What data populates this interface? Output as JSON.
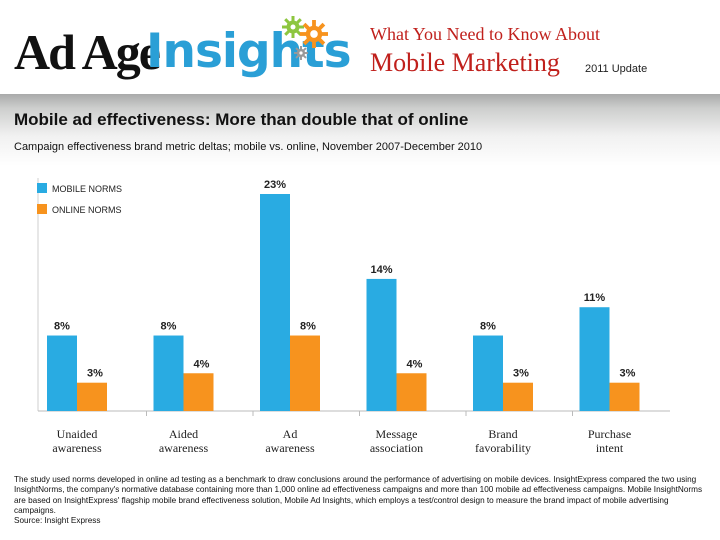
{
  "header": {
    "logo_left": "Ad Age",
    "logo_right": "Insights",
    "top_line": "What You Need to Know About",
    "main_line": "Mobile Marketing",
    "update": "2011 Update"
  },
  "colors": {
    "mobile": "#29abe2",
    "online": "#f7931e",
    "title_red": "#c0201c",
    "brand_blue": "#2a9fd6"
  },
  "chart_data": {
    "type": "bar",
    "title": "Mobile ad effectiveness: More than double that of online",
    "subtitle": "Campaign effectiveness brand metric deltas; mobile vs. online, November 2007-December 2010",
    "categories": [
      "Unaided awareness",
      "Aided awareness",
      "Ad awareness",
      "Message association",
      "Brand favorability",
      "Purchase intent"
    ],
    "series": [
      {
        "name": "MOBILE NORMS",
        "values": [
          8,
          8,
          23,
          14,
          8,
          11
        ],
        "labels": [
          "8%",
          "8%",
          "23%",
          "14%",
          "8%",
          "11%"
        ]
      },
      {
        "name": "ONLINE NORMS",
        "values": [
          3,
          4,
          8,
          4,
          3,
          3
        ],
        "labels": [
          "3%",
          "4%",
          "8%",
          "4%",
          "3%",
          "3%"
        ]
      }
    ],
    "ylim": [
      0,
      23
    ],
    "xlabel": "",
    "ylabel": "",
    "legend": "top-left",
    "grid": false
  },
  "footnote": {
    "text": "The study used norms developed in online ad testing as a benchmark to draw conclusions around the performance of advertising on mobile devices. InsightExpress compared the two using InsightNorms, the company's normative database containing more than 1,000 online ad effectiveness campaigns and more than 100 mobile ad effectiveness campaigns. Mobile InsightNorms are based on InsightExpress' flagship mobile brand effectiveness solution, Mobile Ad Insights, which employs a test/control design to measure the brand impact of mobile advertising campaigns.",
    "source": "Source: Insight Express"
  }
}
